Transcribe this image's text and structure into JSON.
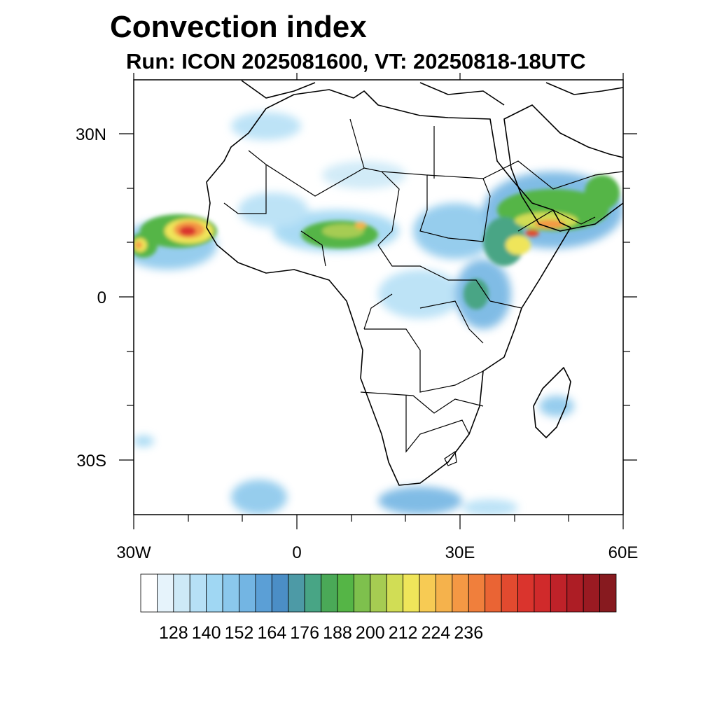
{
  "title": "Convection index",
  "subtitle": "Run: ICON 2025081600,  VT: 20250818-18UTC",
  "map": {
    "region": "Africa",
    "lon_range": [
      -30,
      60
    ],
    "lat_range": [
      -40,
      40
    ],
    "x_tick_labels": [
      "30W",
      "0",
      "30E",
      "60E"
    ],
    "x_tick_values": [
      -30,
      0,
      30,
      60
    ],
    "y_tick_labels": [
      "30N",
      "0",
      "30S"
    ],
    "y_tick_values": [
      30,
      0,
      -30
    ],
    "features": [
      "coastlines",
      "country borders",
      "shaded convection index field"
    ]
  },
  "colorbar": {
    "label_values": [
      "128",
      "140",
      "152",
      "164",
      "176",
      "188",
      "200",
      "212",
      "224",
      "236"
    ],
    "colors": [
      "#ffffff",
      "#e6f3fb",
      "#cde9f7",
      "#b6e0f6",
      "#a0d7f3",
      "#8bc8ec",
      "#73b5e3",
      "#5b9fd6",
      "#4b8ec6",
      "#4d9aa6",
      "#48a585",
      "#4aa957",
      "#55b546",
      "#7ec04d",
      "#a6cc52",
      "#d1dd55",
      "#efe55a",
      "#f7cb54",
      "#f5b24c",
      "#f49844",
      "#f07f3c",
      "#ea6434",
      "#e24a2f",
      "#da342d",
      "#d02a2b",
      "#bf2229",
      "#ad1d25",
      "#9a1a22",
      "#871a1f"
    ]
  },
  "chart_data": {
    "type": "heatmap",
    "title": "Convection index",
    "subtitle": "Run: ICON 2025081600,  VT: 20250818-18UTC",
    "x_range": [
      -30,
      60
    ],
    "y_range": [
      -40,
      40
    ],
    "colorbar_ticks": [
      128,
      140,
      152,
      164,
      176,
      188,
      200,
      212,
      224,
      236
    ],
    "maxima_regions": [
      "Senegal coast / West Atlantic (~200-236)",
      "Ethiopian highlands / Yemen (~176-224)",
      "Nigeria-Chad belt (~176-200)"
    ]
  }
}
